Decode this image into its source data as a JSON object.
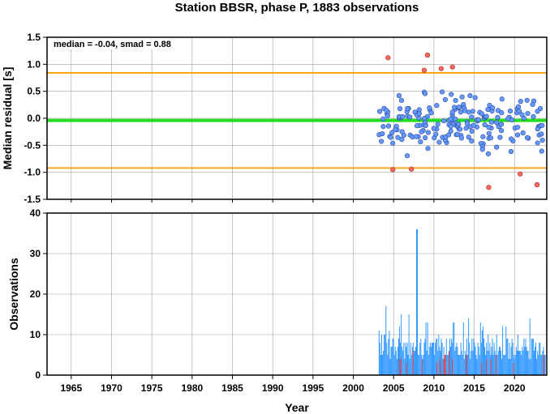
{
  "chart_data": [
    {
      "type": "scatter",
      "title": "Station BBSR, phase P, 1883 observations",
      "xlabel": "",
      "ylabel": "Median residual [s]",
      "xlim": [
        1962,
        2024
      ],
      "ylim": [
        -1.5,
        1.5
      ],
      "yticks": [
        "1.5",
        "1.0",
        "0.5",
        "0.0",
        "-0.5",
        "-1.0",
        "-1.5"
      ],
      "grid": true,
      "annotation": "median = -0.04, smad = 0.88",
      "reference_lines": [
        {
          "y": -0.04,
          "color": "#22dd22"
        },
        {
          "y": 0.84,
          "color": "#f5a623"
        },
        {
          "y": -0.92,
          "color": "#f5a623"
        }
      ],
      "point_colors": {
        "inlier": "#6699ff",
        "outlier": "#ff6b5b"
      },
      "outliers": [
        [
          2004.3,
          1.12
        ],
        [
          2004.9,
          -0.95
        ],
        [
          2007.2,
          -0.94
        ],
        [
          2008.8,
          0.89
        ],
        [
          2009.2,
          1.17
        ],
        [
          2010.9,
          0.92
        ],
        [
          2012.3,
          0.95
        ],
        [
          2016.8,
          -1.28
        ],
        [
          2020.7,
          -1.03
        ],
        [
          2022.8,
          -1.23
        ]
      ]
    },
    {
      "type": "bar",
      "title": "",
      "xlabel": "Year",
      "ylabel": "Observations",
      "xlim": [
        1962,
        2024
      ],
      "ylim": [
        0,
        40
      ],
      "xticks": [
        "1965",
        "1970",
        "1975",
        "1980",
        "1985",
        "1990",
        "1995",
        "2000",
        "2005",
        "2010",
        "2015",
        "2020"
      ],
      "yticks": [
        "40",
        "30",
        "20",
        "10",
        "0"
      ],
      "grid": true,
      "bar_color": "#3399ff",
      "outlier_bar_color": "#e0404a",
      "peak": {
        "x": 2007.9,
        "y": 36
      }
    }
  ]
}
